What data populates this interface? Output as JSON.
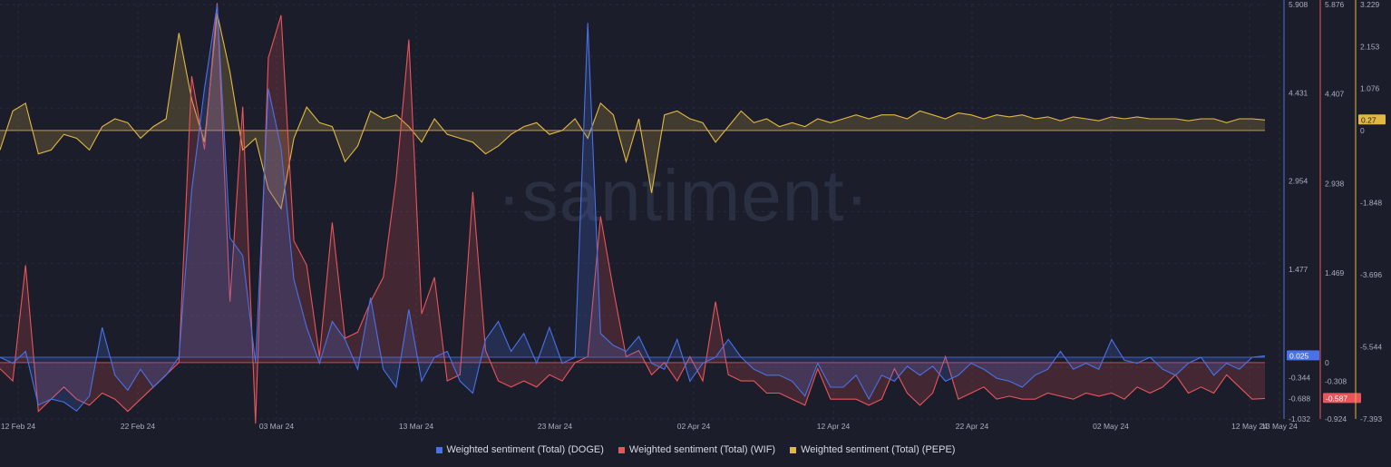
{
  "watermark": "·santiment·",
  "chart_data": {
    "type": "area",
    "x_labels": [
      "12 Feb 24",
      "22 Feb 24",
      "03 Mar 24",
      "13 Mar 24",
      "23 Mar 24",
      "02 Apr 24",
      "12 Apr 24",
      "22 Apr 24",
      "02 May 24",
      "12 May 24",
      "13 May 24"
    ],
    "series": [
      {
        "name": "Weighted sentiment (Total) (DOGE)",
        "color": "#4a72e8",
        "axis": "left",
        "current_value": "0.025",
        "values": [
          0.0,
          -0.1,
          0.1,
          -0.8,
          -0.7,
          -0.75,
          -0.9,
          -0.65,
          0.5,
          -0.3,
          -0.55,
          -0.2,
          -0.5,
          -0.3,
          0.0,
          2.8,
          4.5,
          5.9,
          2.0,
          1.7,
          -0.1,
          4.5,
          3.5,
          1.3,
          0.5,
          -0.1,
          0.6,
          0.3,
          -0.2,
          1.0,
          -0.2,
          -0.5,
          0.8,
          -0.4,
          0.0,
          0.1,
          -0.4,
          -0.6,
          0.3,
          0.6,
          0.1,
          0.4,
          -0.1,
          0.5,
          -0.1,
          0.0,
          5.6,
          0.4,
          0.2,
          0.1,
          0.35,
          -0.1,
          -0.2,
          0.3,
          -0.4,
          -0.1,
          0.0,
          0.3,
          0.0,
          -0.2,
          -0.3,
          -0.3,
          -0.4,
          -0.65,
          -0.1,
          -0.5,
          -0.5,
          -0.3,
          -0.7,
          -0.3,
          -0.4,
          -0.15,
          -0.3,
          -0.15,
          -0.4,
          -0.3,
          -0.1,
          -0.2,
          -0.35,
          -0.4,
          -0.5,
          -0.3,
          -0.2,
          0.1,
          -0.2,
          -0.1,
          -0.2,
          0.3,
          -0.05,
          -0.1,
          0.0,
          -0.2,
          -0.3,
          -0.1,
          0.0,
          -0.3,
          -0.1,
          -0.2,
          0.0,
          0.025
        ]
      },
      {
        "name": "Weighted sentiment (Total) (WIF)",
        "color": "#e8555b",
        "axis": "mid",
        "current_value": "-0.587",
        "values": [
          -0.1,
          -0.3,
          1.6,
          -0.8,
          -0.6,
          -0.4,
          -0.6,
          -0.7,
          -0.5,
          -0.6,
          -0.8,
          -0.6,
          -0.4,
          -0.2,
          0.0,
          4.7,
          3.5,
          5.9,
          1.0,
          4.2,
          -1.0,
          5.0,
          5.7,
          2.0,
          1.6,
          0.1,
          2.3,
          0.4,
          0.5,
          1.0,
          1.4,
          3.0,
          5.3,
          0.8,
          1.4,
          -0.3,
          -0.2,
          2.8,
          0.2,
          -0.3,
          -0.4,
          -0.3,
          -0.4,
          -0.2,
          -0.3,
          0.0,
          0.1,
          2.4,
          1.2,
          0.1,
          0.2,
          -0.2,
          0.0,
          -0.3,
          0.1,
          -0.3,
          1.0,
          -0.2,
          -0.3,
          -0.3,
          -0.5,
          -0.5,
          -0.6,
          -0.7,
          -0.1,
          -0.6,
          -0.6,
          -0.6,
          -0.7,
          -0.6,
          -0.1,
          -0.5,
          -0.7,
          -0.5,
          0.1,
          -0.6,
          -0.5,
          -0.4,
          -0.6,
          -0.55,
          -0.6,
          -0.6,
          -0.5,
          -0.55,
          -0.6,
          -0.5,
          -0.55,
          -0.5,
          -0.6,
          -0.4,
          -0.5,
          -0.4,
          -0.2,
          -0.5,
          -0.4,
          -0.5,
          -0.2,
          -0.4,
          -0.6,
          -0.587
        ]
      },
      {
        "name": "Weighted sentiment (Total) (PEPE)",
        "color": "#e2b844",
        "axis": "right",
        "current_value": "0.27",
        "values": [
          -0.5,
          0.5,
          0.7,
          -0.6,
          -0.5,
          -0.1,
          -0.2,
          -0.5,
          0.1,
          0.3,
          0.2,
          -0.2,
          0.1,
          0.3,
          2.5,
          0.8,
          -0.3,
          3.0,
          1.5,
          -0.5,
          -0.2,
          -1.5,
          -2.0,
          -0.2,
          0.6,
          0.2,
          0.1,
          -0.8,
          -0.4,
          0.5,
          0.3,
          0.4,
          0.1,
          -0.3,
          0.3,
          -0.1,
          -0.2,
          -0.3,
          -0.6,
          -0.4,
          -0.1,
          0.1,
          0.2,
          -0.1,
          0.0,
          0.3,
          -0.2,
          0.7,
          0.4,
          -0.8,
          0.3,
          -1.6,
          0.4,
          0.5,
          0.3,
          0.2,
          -0.3,
          0.1,
          0.5,
          0.2,
          0.3,
          0.1,
          0.2,
          0.1,
          0.3,
          0.2,
          0.3,
          0.4,
          0.3,
          0.4,
          0.4,
          0.3,
          0.5,
          0.4,
          0.3,
          0.45,
          0.4,
          0.3,
          0.4,
          0.35,
          0.4,
          0.3,
          0.35,
          0.25,
          0.35,
          0.3,
          0.25,
          0.35,
          0.3,
          0.35,
          0.3,
          0.3,
          0.3,
          0.25,
          0.3,
          0.3,
          0.2,
          0.3,
          0.3,
          0.27
        ]
      }
    ],
    "axes": [
      {
        "id": "left",
        "color": "#4a72e8",
        "ticks": [
          "5.908",
          "4.431",
          "2.954",
          "1.477",
          "0.025",
          "-0.344",
          "-0.688",
          "-1.032"
        ],
        "ylim": [
          -1.032,
          5.908
        ]
      },
      {
        "id": "mid",
        "color": "#e8555b",
        "ticks": [
          "5.876",
          "4.407",
          "2.938",
          "1.469",
          "0",
          "-0.308",
          "-0.587",
          "-0.924"
        ],
        "ylim": [
          -0.924,
          5.876
        ]
      },
      {
        "id": "right",
        "color": "#e2b844",
        "ticks": [
          "3.229",
          "2.153",
          "1.076",
          "0.27",
          "0",
          "-1.848",
          "-3.696",
          "-5.544",
          "-7.393"
        ],
        "ylim": [
          -7.393,
          3.229
        ]
      }
    ],
    "grid": true,
    "legend_position": "bottom"
  }
}
